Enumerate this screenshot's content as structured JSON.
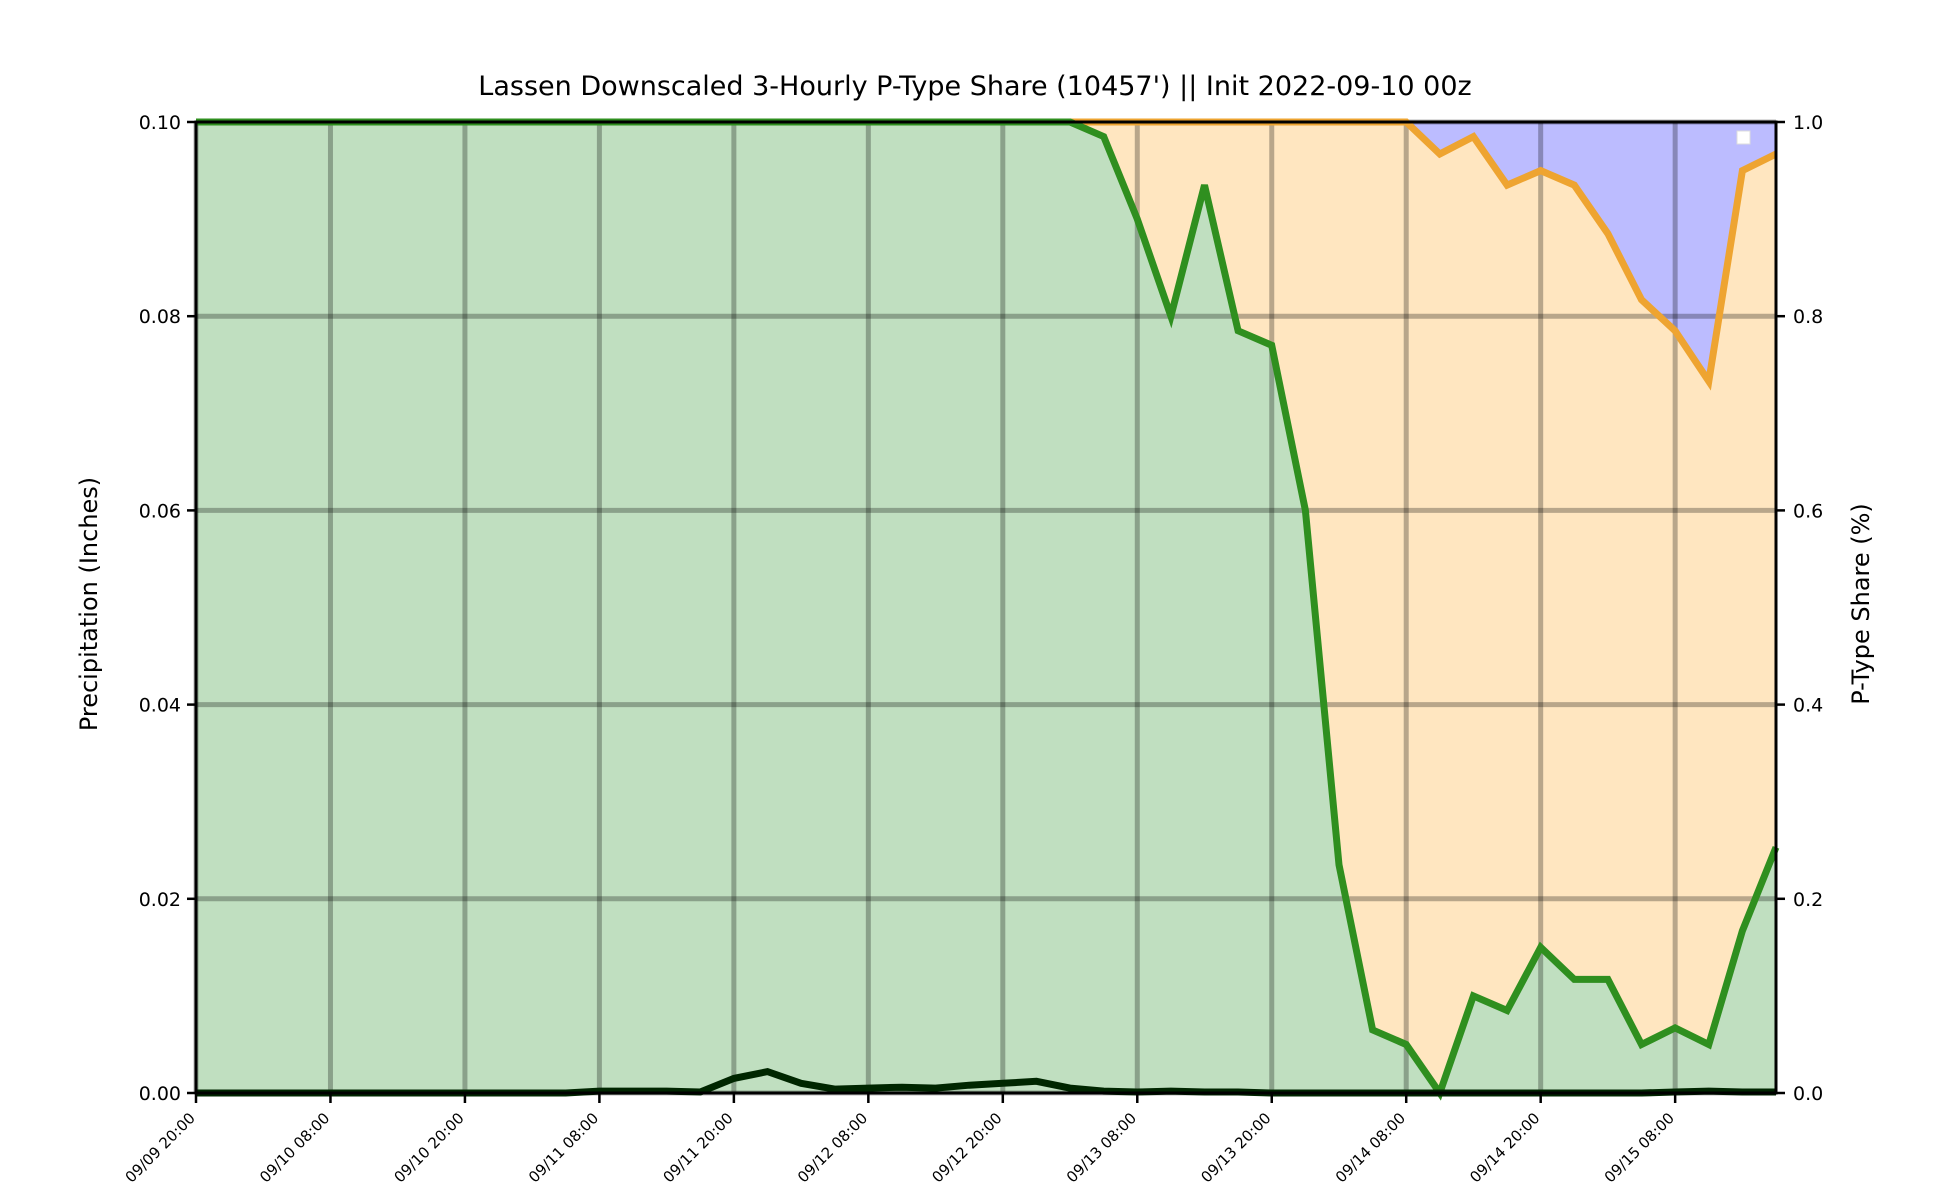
{
  "chart_data": {
    "type": "area",
    "title": "Lassen Downscaled 3-Hourly P-Type Share (10457') || Init 2022-09-10 00z",
    "ylabel": "Precipitation (Inches)",
    "ylabel_right": "P-Type Share (%)",
    "ylim": [
      0,
      0.1
    ],
    "ylim_right": [
      0,
      1.0
    ],
    "yticks": [
      "0.00",
      "0.02",
      "0.04",
      "0.06",
      "0.08",
      "0.10"
    ],
    "yticks_right": [
      "0.0",
      "0.2",
      "0.4",
      "0.6",
      "0.8",
      "1.0"
    ],
    "xticks": [
      "09/09 20:00",
      "09/10 08:00",
      "09/10 20:00",
      "09/11 08:00",
      "09/11 20:00",
      "09/12 08:00",
      "09/12 20:00",
      "09/13 08:00",
      "09/13 20:00",
      "09/14 08:00",
      "09/14 20:00",
      "09/15 08:00"
    ],
    "x_step_hours": 3,
    "grid": true,
    "legend": "top-right",
    "colors": {
      "rain_fill": "#c0dfc0",
      "mixed_fill": "#ffe6c0",
      "snow_fill": "#bcbcff",
      "rain_line": "#2f8f1f",
      "mixed_line": "#eea431",
      "precip_line": "#002600"
    },
    "series": [
      {
        "name": "",
        "axis": "left",
        "values": [
          0,
          0,
          0,
          0,
          0,
          0,
          0,
          0,
          0,
          0,
          0,
          0,
          0.0002,
          0.0002,
          0.0002,
          0.0001,
          0.0015,
          0.0022,
          0.001,
          0.0004,
          0.0005,
          0.0006,
          0.0005,
          0.0008,
          0.001,
          0.0012,
          0.0005,
          0.0002,
          0.0001,
          0.0002,
          0.0001,
          0.0001,
          0,
          0,
          0,
          0,
          0,
          0,
          0,
          0,
          0,
          0,
          0,
          0,
          0.0001,
          0.0002,
          0.0001,
          0.0001
        ]
      },
      {
        "name": "",
        "axis": "right",
        "values": [
          1,
          1,
          1,
          1,
          1,
          1,
          1,
          1,
          1,
          1,
          1,
          1,
          1,
          1,
          1,
          1,
          1,
          1,
          1,
          1,
          1,
          1,
          1,
          1,
          1,
          1,
          1,
          0.985,
          0.9,
          0.8,
          0.935,
          0.785,
          0.77,
          0.6,
          0.235,
          0.065,
          0.05,
          0.0,
          0.1,
          0.085,
          0.15,
          0.117,
          0.117,
          0.05,
          0.067,
          0.05,
          0.167,
          0.253
        ]
      },
      {
        "name": "",
        "axis": "right",
        "values": [
          1,
          1,
          1,
          1,
          1,
          1,
          1,
          1,
          1,
          1,
          1,
          1,
          1,
          1,
          1,
          1,
          1,
          1,
          1,
          1,
          1,
          1,
          1,
          1,
          1,
          1,
          1,
          1,
          1,
          1,
          1,
          1,
          1,
          1,
          1,
          1,
          1,
          0.967,
          0.985,
          0.935,
          0.95,
          0.935,
          0.885,
          0.817,
          0.785,
          0.733,
          0.95,
          0.967
        ]
      }
    ]
  }
}
